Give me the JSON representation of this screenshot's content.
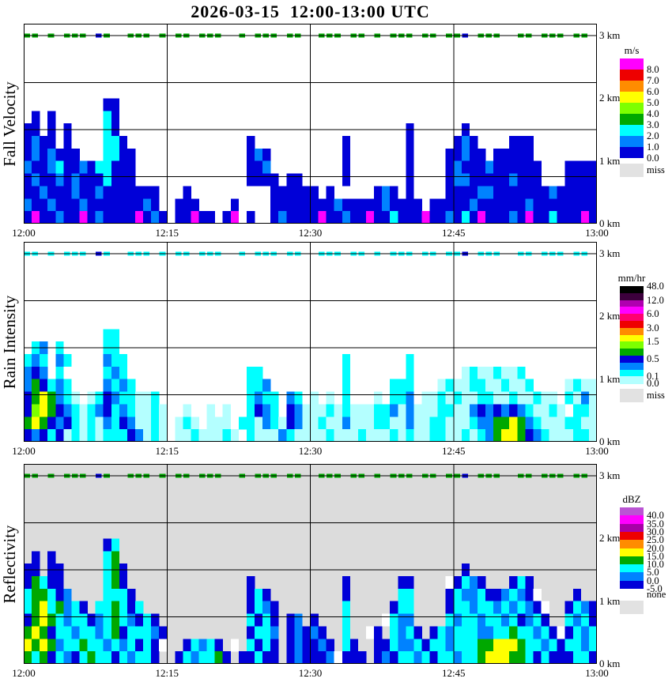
{
  "title": "2026-03-15  12:00-13:00 UTC",
  "chart_data": {
    "type": "heatmap",
    "time_range_utc": [
      "12:00",
      "13:00"
    ],
    "time_ticks": [
      "12:00",
      "12:15",
      "12:30",
      "12:45",
      "13:00"
    ],
    "height_tick_labels": [
      "3 km",
      "2 km",
      "1 km",
      "0 km"
    ],
    "height_range_km": [
      0.0,
      3.19
    ],
    "height_gridlines_km": [
      0.75,
      1.5,
      2.25,
      3.0
    ],
    "grid_encoding": {
      "description": "grid rows are 15 height bands of 0.2 km from 3.0km (first row) down to 0km (last row); 72 time columns of 50s each; '.'=no echo",
      "value_colors": {
        "b": "#0000D8",
        "d": "#0082FF",
        "c": "#00FFFF",
        "g": "#00A800",
        "l": "#7DFF00",
        "y": "#FFFF00",
        "m": "#FF00FF",
        "p": "#B4FFFF",
        "w": "#FFFFFF"
      }
    },
    "panels": [
      {
        "id": "fall-velocity",
        "label": "Fall Velocity",
        "background": "#FFFFFF",
        "colorbar": {
          "unit": "m/s",
          "cells": [
            "#FF00FF",
            "#EE0000",
            "#FF8C00",
            "#FFFF00",
            "#7DFF00",
            "#00A800",
            "#00FFFF",
            "#0082FF",
            "#0000D8"
          ],
          "labels": [
            {
              "text": "8.0",
              "pos": 0.111
            },
            {
              "text": "7.0",
              "pos": 0.222
            },
            {
              "text": "6.0",
              "pos": 0.333
            },
            {
              "text": "5.0",
              "pos": 0.444
            },
            {
              "text": "4.0",
              "pos": 0.556
            },
            {
              "text": "3.0",
              "pos": 0.667
            },
            {
              "text": "2.0",
              "pos": 0.778
            },
            {
              "text": "1.0",
              "pos": 0.889
            },
            {
              "text": "0.0",
              "pos": 1.0
            }
          ],
          "miss_label": "miss",
          "miss_color": "#E2E2E2"
        },
        "interference_row": [
          "gg.g.ggg.bg.",
          ".ggg.g.gg.gg",
          "g..g.ggg.gg.",
          ".ggg.gg.g.gg",
          "g.gg.ggb.ggg",
          "..gg.ggg.gg."
        ],
        "grid": [
          [
            "............",
            "............",
            "............",
            "............",
            "............",
            "............"
          ],
          [
            "............",
            "............",
            "............",
            "............",
            "............",
            "............"
          ],
          [
            "............",
            "............",
            "............",
            "............",
            "............",
            "............"
          ],
          [
            "............",
            "............",
            "............",
            "............",
            "............",
            "............"
          ],
          [
            "............",
            "............",
            "............",
            "............",
            "............",
            "............"
          ],
          [
            "..........bb",
            "............",
            "............",
            "............",
            "............",
            "............"
          ],
          [
            ".b.b......cb",
            "............",
            "............",
            "............",
            "............",
            "............"
          ],
          [
            "bb.b.b....cb",
            "............",
            "............",
            "............",
            "b......b....",
            "............"
          ],
          [
            "bdbb.b....cc",
            "b...........",
            "....b.......",
            "....b.......",
            "b.....bdb...",
            ".bbb........"
          ],
          [
            "bdbdbbb...cc",
            "bb..........",
            "....bdb.....",
            "....b.......",
            "b....bbdbb.b",
            "bbbb........"
          ],
          [
            "dbbdcbbdbccb",
            "bb..........",
            "....bbd.....",
            "....b.......",
            "b....bdbbbdb",
            "bbbbb...bbbb"
          ],
          [
            "bdbbdbdbbbcb",
            "bb..........",
            "....bbbb.bb.",
            "....b.......",
            "b....bddbbbb",
            "bdbbb...bbbb"
          ],
          [
            "bbdbbbdbbdbb",
            "bbbbb...b...",
            ".......bbbbb",
            "b.b.....bdb.",
            "b....bbbbddb",
            "bbbbbbdbbbbb"
          ],
          [
            "dbbdbbbdbbbb",
            "bbbdb..bbb..",
            "..b....bbbbb",
            "bbbdbbbbbdbb",
            "bb.bbbbbdbbb",
            "bbbdbbbbbbbb"
          ],
          [
            "bmbbdbbmbdbb",
            "bbmbdb.bbmbb",
            ".bm.b..bdbbb",
            "bmbbdbbmbbcb",
            "bbmbbdbcbmbb",
            "bdbmbbcbbbmb"
          ]
        ]
      },
      {
        "id": "rain-intensity",
        "label": "Rain Intensity",
        "background": "#FFFFFF",
        "colorbar": {
          "unit": "mm/hr",
          "cells": [
            "#000000",
            "#3C003C",
            "#B000B0",
            "#FF00FF",
            "#FF0070",
            "#EE0000",
            "#FF8C00",
            "#FFFF00",
            "#7DFF00",
            "#00A800",
            "#0000D8",
            "#0082FF",
            "#00FFFF",
            "#B4FFFF"
          ],
          "labels": [
            {
              "text": "48.0",
              "pos": 0.0
            },
            {
              "text": "12.0",
              "pos": 0.143
            },
            {
              "text": "6.0",
              "pos": 0.286
            },
            {
              "text": "3.0",
              "pos": 0.429
            },
            {
              "text": "1.5",
              "pos": 0.571
            },
            {
              "text": "0.5",
              "pos": 0.75
            },
            {
              "text": "0.1",
              "pos": 0.929
            },
            {
              "text": "0.0",
              "pos": 1.0
            }
          ],
          "miss_label": "miss",
          "miss_color": "#E2E2E2"
        },
        "interference_row": [
          "cc.c.ccc.bc.",
          ".ccc.c.cc.cc",
          "c..c.ccc.cc.",
          ".ccc.cc.c.cc",
          "c.cc.ccb.ccc",
          "..cc.ccc.cc."
        ],
        "grid": [
          [
            "............",
            "............",
            "............",
            "............",
            "............",
            "............"
          ],
          [
            "............",
            "............",
            "............",
            "............",
            "............",
            "............"
          ],
          [
            "............",
            "............",
            "............",
            "............",
            "............",
            "............"
          ],
          [
            "............",
            "............",
            "............",
            "............",
            "............",
            "............"
          ],
          [
            "............",
            "............",
            "............",
            "............",
            "............",
            "............"
          ],
          [
            "............",
            "............",
            "............",
            "............",
            "............",
            "............"
          ],
          [
            "..........cc",
            "............",
            "............",
            "............",
            "............",
            "............"
          ],
          [
            ".cd.c.....cc",
            "............",
            "............",
            "............",
            "............",
            "............"
          ],
          [
            "cdc.dc....dc",
            "c...........",
            "............",
            "....c.......",
            "c...........",
            "............"
          ],
          [
            "dbd.c.....cd",
            "c...........",
            "....cc......",
            "....c.......",
            "c......pcppc",
            "ppc........."
          ],
          [
            "dgbcdc....dc",
            "dc..........",
            "....ccd.....",
            "....c.....cc",
            "c...pcppccpp",
            "cppc....pcpp"
          ],
          [
            "bgygdcp.pcbd",
            "ccppc.......",
            "....cdcc.dc.",
            "p.p.c...p.cc",
            "d.ppcpcppccp",
            "pcppcpp.cpdp"
          ],
          [
            "blygbdcpcdbc",
            "dcppcp..p..p",
            ".p..cbdc.bdp",
            "ppcpcpppccdp",
            "dpppccppdbdb",
            "dbdcppcp.ccp"
          ],
          [
            "gygbdbcpcpdc",
            "bdppcp.pcp.p",
            "pp.ccpdcpbdp",
            "pcppdpppccpp",
            "dppccpppcddg",
            "gygdcpppccpp"
          ],
          [
            "bdbcbpcpcpcc",
            "cbdpcp.ppcpp",
            "pcp.cpppdcpp",
            "ppcpppcpppcp",
            "cppccppcpcdg",
            "yygbdcpppccp"
          ]
        ]
      },
      {
        "id": "reflectivity",
        "label": "Reflectivity",
        "background": "#DCDCDC",
        "colorbar": {
          "unit": "dBZ",
          "cells": [
            "#BA55D3",
            "#FF00FF",
            "#A800A8",
            "#EE0000",
            "#FF8C00",
            "#FFFF00",
            "#00A800",
            "#00FFFF",
            "#0082FF",
            "#0000D8"
          ],
          "labels": [
            {
              "text": "40.0",
              "pos": 0.1
            },
            {
              "text": "35.0",
              "pos": 0.2
            },
            {
              "text": "30.0",
              "pos": 0.3
            },
            {
              "text": "25.0",
              "pos": 0.4
            },
            {
              "text": "20.0",
              "pos": 0.5
            },
            {
              "text": "15.0",
              "pos": 0.6
            },
            {
              "text": "10.0",
              "pos": 0.7
            },
            {
              "text": "5.0",
              "pos": 0.8
            },
            {
              "text": "0.0",
              "pos": 0.9
            },
            {
              "text": "-5.0",
              "pos": 1.0
            }
          ],
          "miss_label": "none",
          "miss_color": "#E2E2E2"
        },
        "interference_row": [
          "gg.g.ggg.bg.",
          ".ggg.g.gg.gg",
          "g..g.ggg.gg.",
          ".ggg.gg.g.gg",
          "g.gg.ggb.ggg",
          "..gg.ggg.gg."
        ],
        "grid": [
          [
            "............",
            "............",
            "............",
            "............",
            "............",
            "............"
          ],
          [
            "............",
            "............",
            "............",
            "............",
            "............",
            "............"
          ],
          [
            "............",
            "............",
            "............",
            "............",
            "............",
            "............"
          ],
          [
            "............",
            "............",
            "............",
            "............",
            "............",
            "............"
          ],
          [
            "............",
            "............",
            "............",
            "............",
            "............",
            "............"
          ],
          [
            "..........bc",
            "............",
            "............",
            "............",
            "............",
            "............"
          ],
          [
            ".b.b......cg",
            "............",
            "............",
            "............",
            "............",
            "............"
          ],
          [
            "bb.bb.....cg",
            "b...........",
            "............",
            "............",
            ".......b....",
            "............"
          ],
          [
            "bgcbb.....cg",
            "b...........",
            "....b.......",
            "....b......b",
            "b....wbcdb..",
            ".bcb........"
          ],
          [
            "cggcbd....cc",
            "cb..........",
            "....bcb.....",
            "....b......c",
            "c....bcddcbb",
            "dcdbw....b.."
          ],
          [
            "cgycgdcb.ccg",
            "cbc.........",
            "....bcdb....",
            "....c.....bc",
            "c....bccdccd",
            "cdcdbw..bcdb"
          ],
          [
            "bgygcdccbdcg",
            "cdbcb.......",
            "....cbcb.bd.",
            "b...c....wcd",
            "d....cdccdcc",
            "dcbdcb..cdcb"
          ],
          [
            "gygbccdccdcg",
            "bcccdb......",
            "....bccd.bdb",
            "db..c..wb.cd",
            "cb.bcdcccddc",
            "cgccdcbwbcdc"
          ],
          [
            "ygygdccgccdc",
            "dcbcbw..bcdc",
            "b.w.cbcb.bdb",
            "bdb.cb..bbcd",
            "dcbccdcccggy",
            "yygccdcbccdc"
          ],
          [
            "gcgbcdbcgccb",
            "cdccb..bcdcc",
            "gb.bbcbb.bdb",
            "bbdwbbb.bdbc",
            "cdcbccdccgyy",
            "yggcbcbbbccb"
          ]
        ]
      }
    ]
  }
}
